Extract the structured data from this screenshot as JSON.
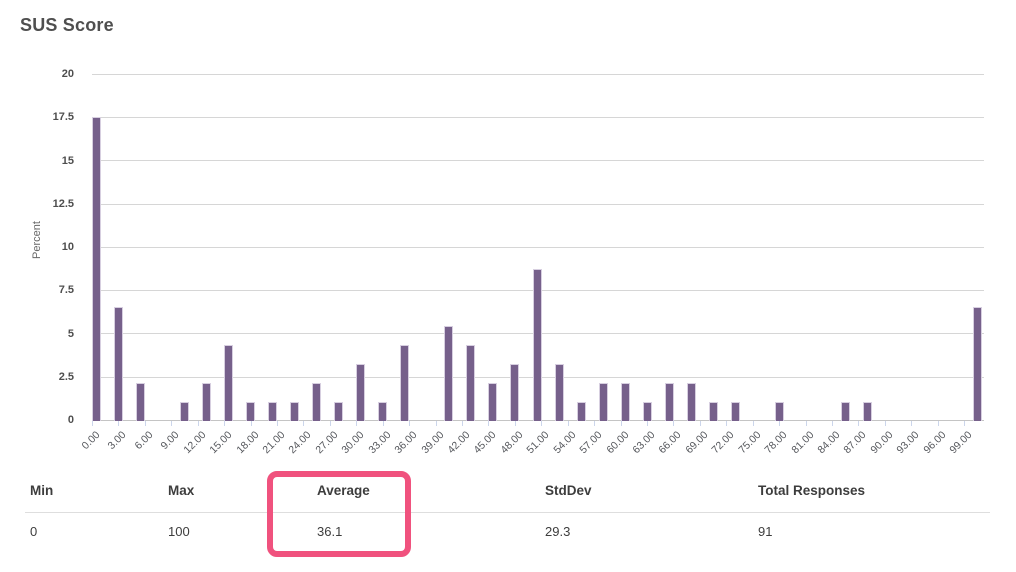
{
  "title": "SUS Score",
  "chart_data": {
    "type": "bar",
    "title": "SUS Score",
    "xlabel": "",
    "ylabel": "Percent",
    "ylim": [
      0,
      20
    ],
    "xlim": [
      0,
      101
    ],
    "grid": true,
    "legend_position": "none",
    "bar_color": "#76608b",
    "bar_border_color": "#d7cfe0",
    "gridline_color": "#d6d6d6",
    "axis_line_color": "#c4c4c4",
    "tick_mark_color": "#ccd6eb",
    "x": [
      0,
      2.5,
      5,
      10,
      12.5,
      15,
      17.5,
      20,
      22.5,
      25,
      27.5,
      30,
      32.5,
      35,
      40,
      42.5,
      45,
      47.5,
      50,
      52.5,
      55,
      57.5,
      60,
      62.5,
      65,
      67.5,
      70,
      72.5,
      77.5,
      85,
      87.5,
      100
    ],
    "values": [
      17.6,
      6.6,
      2.2,
      1.1,
      2.2,
      4.4,
      1.1,
      1.1,
      1.1,
      2.2,
      1.1,
      3.3,
      1.1,
      4.4,
      5.5,
      4.4,
      2.2,
      3.3,
      8.8,
      3.3,
      1.1,
      2.2,
      2.2,
      1.1,
      2.2,
      2.2,
      1.1,
      1.1,
      1.1,
      1.1,
      1.1,
      6.6
    ],
    "y_ticks": {
      "values": [
        0,
        2.5,
        5,
        7.5,
        10,
        12.5,
        15,
        17.5,
        20
      ],
      "labels": [
        "0",
        "2.5",
        "5",
        "7.5",
        "10",
        "12.5",
        "15",
        "17.5",
        "20"
      ]
    },
    "x_ticks": {
      "values": [
        0,
        3,
        6,
        9,
        12,
        15,
        18,
        21,
        24,
        27,
        30,
        33,
        36,
        39,
        42,
        45,
        48,
        51,
        54,
        57,
        60,
        63,
        66,
        69,
        72,
        75,
        78,
        81,
        84,
        87,
        90,
        93,
        96,
        99
      ],
      "labels": [
        "0.00",
        "3.00",
        "6.00",
        "9.00",
        "12.00",
        "15.00",
        "18.00",
        "21.00",
        "24.00",
        "27.00",
        "30.00",
        "33.00",
        "36.00",
        "39.00",
        "42.00",
        "45.00",
        "48.00",
        "51.00",
        "54.00",
        "57.00",
        "60.00",
        "63.00",
        "66.00",
        "69.00",
        "72.00",
        "75.00",
        "78.00",
        "81.00",
        "84.00",
        "87.00",
        "90.00",
        "93.00",
        "96.00",
        "99.00"
      ]
    }
  },
  "stats": {
    "columns": [
      {
        "id": "min",
        "label": "Min",
        "value": "0"
      },
      {
        "id": "max",
        "label": "Max",
        "value": "100"
      },
      {
        "id": "average",
        "label": "Average",
        "value": "36.1"
      },
      {
        "id": "stddev",
        "label": "StdDev",
        "value": "29.3"
      },
      {
        "id": "total",
        "label": "Total Responses",
        "value": "91"
      }
    ],
    "highlight": {
      "column": "Average",
      "color": "#f0527e"
    }
  }
}
